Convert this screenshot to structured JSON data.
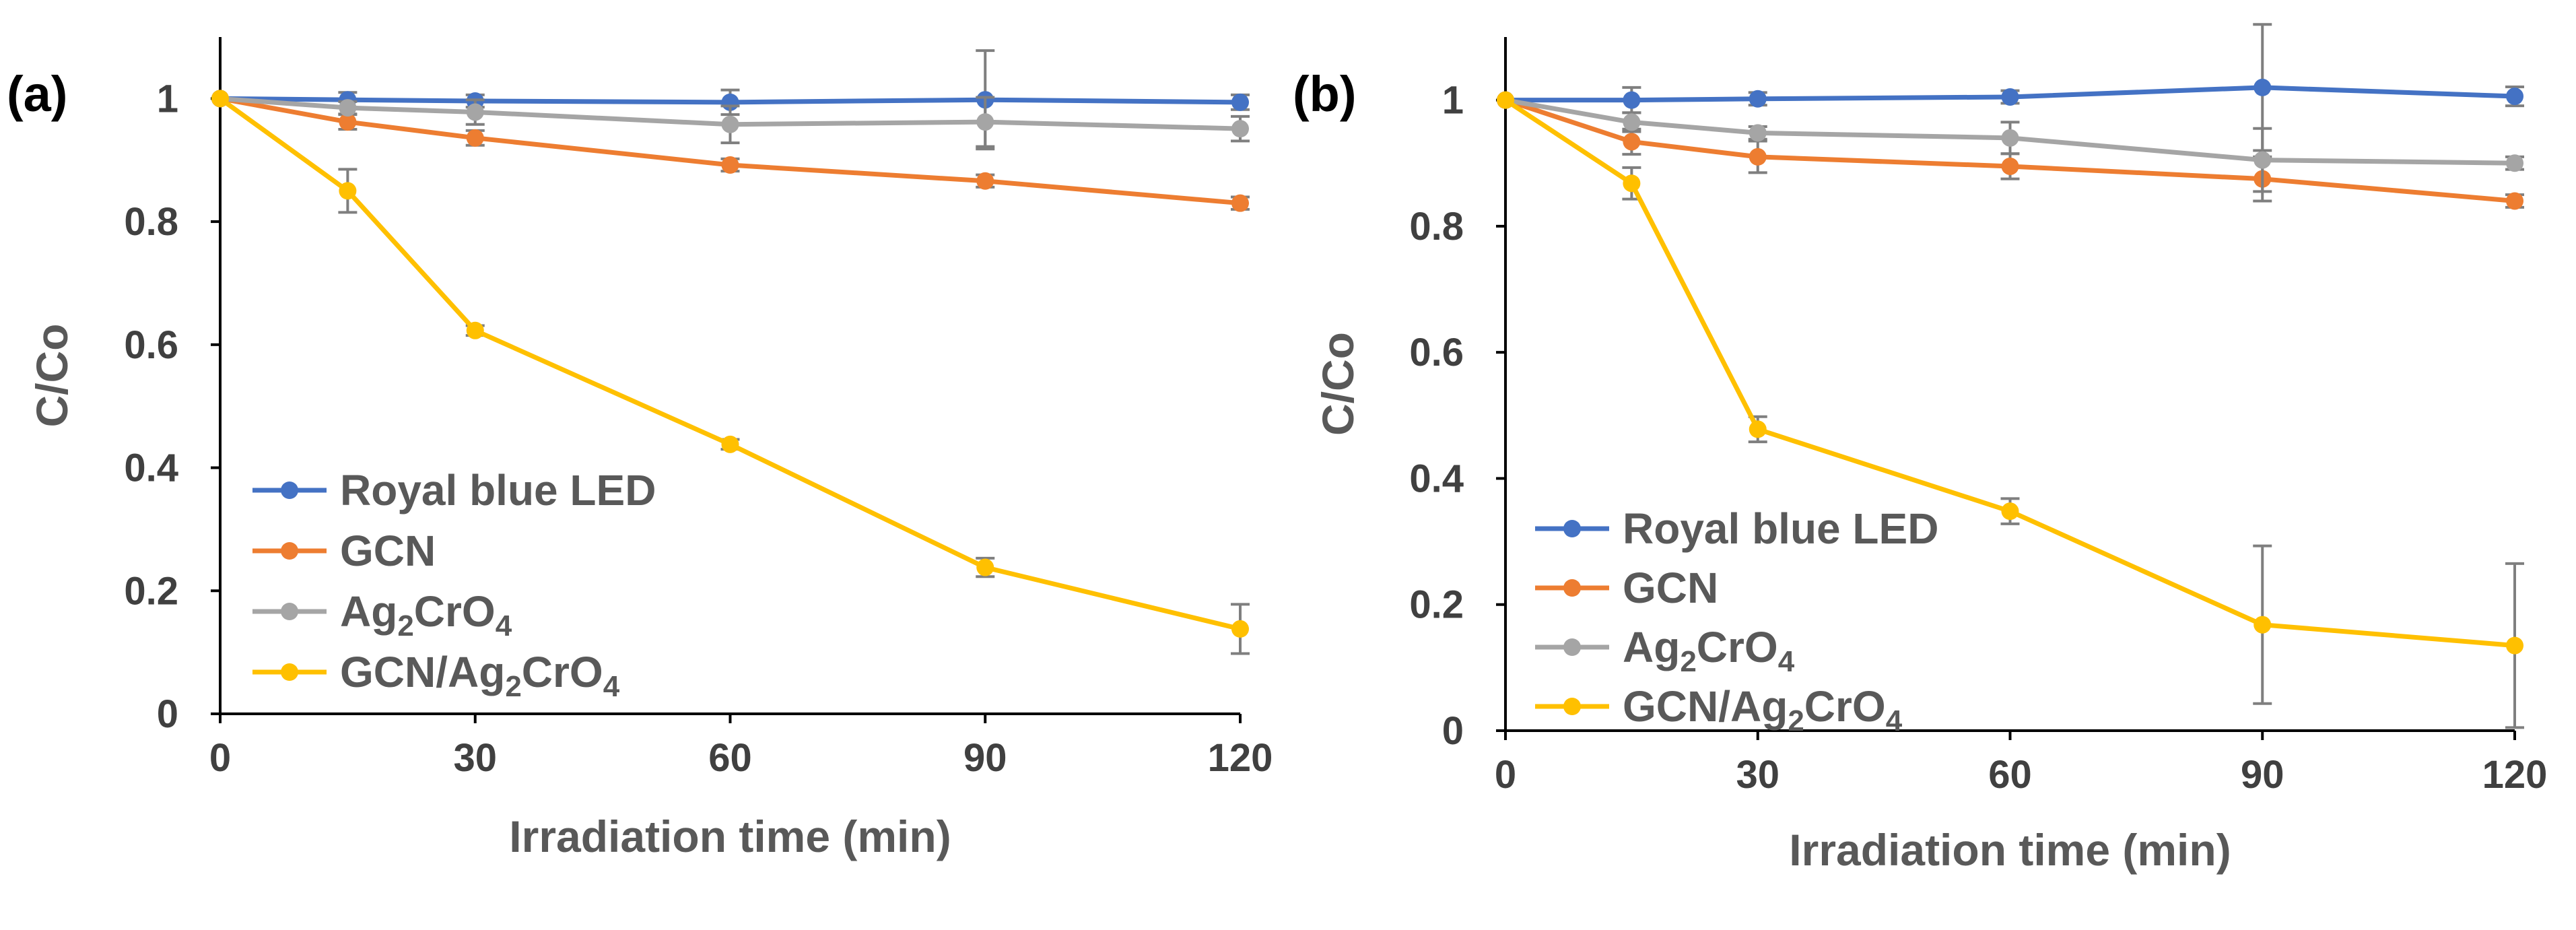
{
  "chart_data": [
    {
      "type": "line",
      "panel_label": "(a)",
      "xlabel": "Irradiation time (min)",
      "ylabel": "C/Co",
      "xlim": [
        0,
        120
      ],
      "ylim": [
        0,
        1.1
      ],
      "xticks": [
        "0",
        "30",
        "60",
        "90",
        "120"
      ],
      "yticks": [
        "0",
        "0.2",
        "0.4",
        "0.6",
        "0.8",
        "1"
      ],
      "x": [
        0,
        15,
        30,
        60,
        90,
        120
      ],
      "series": [
        {
          "name": "Royal blue LED",
          "legend": {
            "base": "Royal blue LED",
            "parts": []
          },
          "color": "#4472C4",
          "values": [
            1.0,
            0.998,
            0.996,
            0.994,
            0.998,
            0.994
          ],
          "errors": [
            0,
            0.012,
            0.01,
            0.02,
            0.08,
            0.012
          ]
        },
        {
          "name": "GCN",
          "legend": {
            "base": "GCN",
            "parts": []
          },
          "color": "#ED7D31",
          "values": [
            1.0,
            0.962,
            0.936,
            0.892,
            0.866,
            0.83
          ],
          "errors": [
            0,
            0.012,
            0.012,
            0.01,
            0.01,
            0.01
          ]
        },
        {
          "name": "Ag2CrO4",
          "legend": {
            "base": "Ag",
            "parts": [
              {
                "sub": "2"
              },
              {
                "text": "CrO"
              },
              {
                "sub": "4"
              }
            ]
          },
          "color": "#A5A5A5",
          "values": [
            1.0,
            0.985,
            0.978,
            0.958,
            0.962,
            0.951
          ],
          "errors": [
            0,
            0.01,
            0.02,
            0.03,
            0.04,
            0.02
          ]
        },
        {
          "name": "GCN/Ag2CrO4",
          "legend": {
            "base": "GCN/Ag",
            "parts": [
              {
                "sub": "2"
              },
              {
                "text": "CrO"
              },
              {
                "sub": "4"
              }
            ]
          },
          "color": "#FFC000",
          "values": [
            1.0,
            0.85,
            0.623,
            0.438,
            0.238,
            0.138
          ],
          "errors": [
            0,
            0.035,
            0.008,
            0.008,
            0.015,
            0.04
          ]
        }
      ]
    },
    {
      "type": "line",
      "panel_label": "(b)",
      "xlabel": "Irradiation time (min)",
      "ylabel": "C/Co",
      "xlim": [
        0,
        120
      ],
      "ylim": [
        0,
        1.1
      ],
      "xticks": [
        "0",
        "30",
        "60",
        "90",
        "120"
      ],
      "yticks": [
        "0",
        "0.2",
        "0.4",
        "0.6",
        "0.8",
        "1"
      ],
      "x": [
        0,
        15,
        30,
        60,
        90,
        120
      ],
      "series": [
        {
          "name": "Royal blue LED",
          "legend": {
            "base": "Royal blue LED",
            "parts": []
          },
          "color": "#4472C4",
          "values": [
            1.0,
            1.0,
            1.002,
            1.005,
            1.02,
            1.006
          ],
          "errors": [
            0,
            0.02,
            0.01,
            0.01,
            0.1,
            0.015
          ]
        },
        {
          "name": "GCN",
          "legend": {
            "base": "GCN",
            "parts": []
          },
          "color": "#ED7D31",
          "values": [
            1.0,
            0.934,
            0.91,
            0.895,
            0.875,
            0.84
          ],
          "errors": [
            0,
            0.02,
            0.025,
            0.02,
            0.035,
            0.01
          ]
        },
        {
          "name": "Ag2CrO4",
          "legend": {
            "base": "Ag",
            "parts": [
              {
                "sub": "2"
              },
              {
                "text": "CrO"
              },
              {
                "sub": "4"
              }
            ]
          },
          "color": "#A5A5A5",
          "values": [
            1.0,
            0.965,
            0.948,
            0.94,
            0.905,
            0.9
          ],
          "errors": [
            0,
            0.015,
            0.01,
            0.025,
            0.05,
            0.01
          ]
        },
        {
          "name": "GCN/Ag2CrO4",
          "legend": {
            "base": "GCN/Ag",
            "parts": [
              {
                "sub": "2"
              },
              {
                "text": "CrO"
              },
              {
                "sub": "4"
              }
            ]
          },
          "color": "#FFC000",
          "values": [
            1.0,
            0.868,
            0.478,
            0.348,
            0.168,
            0.135
          ],
          "errors": [
            0,
            0.025,
            0.02,
            0.02,
            0.125,
            0.13
          ]
        }
      ]
    }
  ]
}
